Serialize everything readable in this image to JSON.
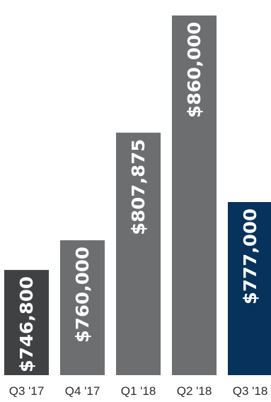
{
  "chart_data": {
    "type": "bar",
    "categories": [
      "Q3 '17",
      "Q4 '17",
      "Q1 '18",
      "Q2 '18",
      "Q3 '18"
    ],
    "values": [
      746800,
      760000,
      807875,
      860000,
      777000
    ],
    "data_labels": [
      "$746,800",
      "$760,000",
      "$807,875",
      "$860,000",
      "$777,000"
    ],
    "title": "",
    "xlabel": "",
    "ylabel": "",
    "ylim": [
      700000,
      865000
    ],
    "grid": false,
    "legend": "none",
    "bar_colors": [
      "#404142",
      "#6d6e70",
      "#6d6e70",
      "#6d6e70",
      "#06325b"
    ]
  }
}
